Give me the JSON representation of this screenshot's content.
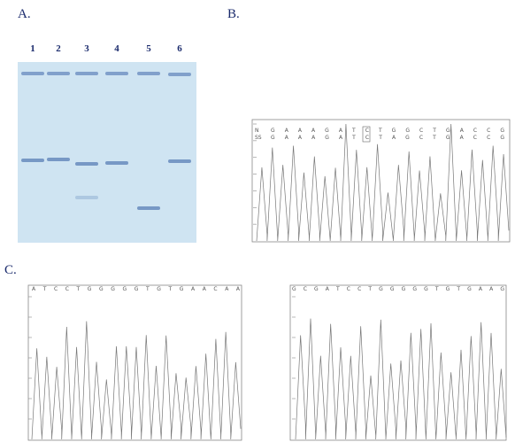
{
  "panels": {
    "a": {
      "label": "A.",
      "lanes": [
        "1",
        "2",
        "3",
        "4",
        "5",
        "6"
      ]
    },
    "b": {
      "label": "B.",
      "rows": [
        {
          "name": "N",
          "sequence": "G A A A G A T C T G G C T G A C C G"
        },
        {
          "name": "SS",
          "sequence": "G A A A G A T C T A G C T G A C C G"
        }
      ]
    },
    "c": {
      "label": "C.",
      "sequences": [
        "A T C C T G G G G G T G T G A A C A A",
        "G C G A T C C T G G G G G T G T G A A G"
      ]
    }
  }
}
